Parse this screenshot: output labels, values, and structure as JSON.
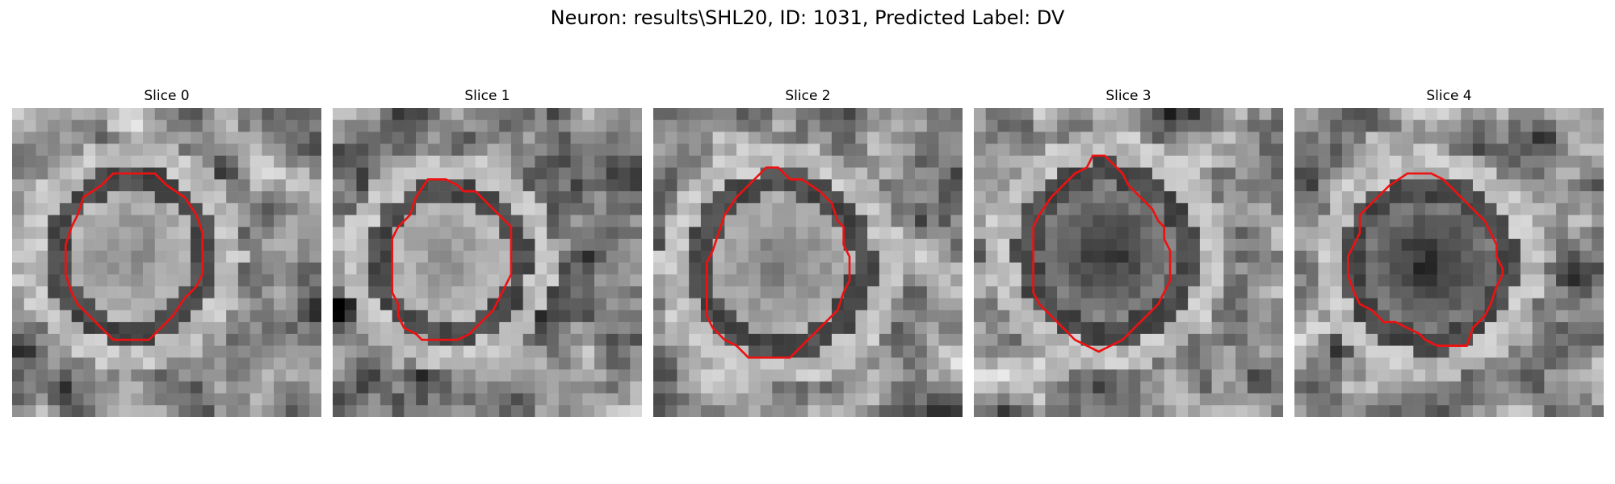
{
  "figure": {
    "title": "Neuron: results\\SHL20, ID: 1031, Predicted Label: DV",
    "contour_color": "#ee1111",
    "image_colormap": "gray",
    "panels": [
      {
        "title": "Slice 0",
        "blob_brightness": 0.55,
        "contour": [
          [
            10.5,
            5.5
          ],
          [
            12.0,
            5.5
          ],
          [
            13.0,
            6.5
          ],
          [
            14.5,
            7.5
          ],
          [
            15.5,
            9.0
          ],
          [
            16.0,
            10.5
          ],
          [
            16.0,
            14.0
          ],
          [
            15.5,
            15.0
          ],
          [
            14.5,
            16.0
          ],
          [
            13.5,
            17.5
          ],
          [
            12.5,
            18.5
          ],
          [
            11.5,
            19.5
          ],
          [
            8.5,
            19.5
          ],
          [
            7.5,
            18.5
          ],
          [
            6.5,
            17.5
          ],
          [
            5.5,
            16.5
          ],
          [
            5.0,
            15.5
          ],
          [
            4.5,
            14.0
          ],
          [
            4.5,
            11.5
          ],
          [
            5.0,
            10.0
          ],
          [
            5.5,
            9.0
          ],
          [
            6.0,
            7.5
          ],
          [
            7.5,
            6.5
          ],
          [
            8.5,
            5.5
          ]
        ]
      },
      {
        "title": "Slice 1",
        "blob_brightness": 0.58,
        "contour": [
          [
            8.0,
            6.0
          ],
          [
            9.5,
            6.0
          ],
          [
            10.5,
            6.5
          ],
          [
            11.0,
            7.0
          ],
          [
            12.0,
            7.0
          ],
          [
            13.0,
            8.0
          ],
          [
            14.0,
            9.0
          ],
          [
            15.0,
            10.0
          ],
          [
            15.0,
            14.0
          ],
          [
            14.5,
            15.0
          ],
          [
            14.0,
            16.0
          ],
          [
            13.5,
            17.0
          ],
          [
            12.5,
            18.0
          ],
          [
            11.5,
            19.0
          ],
          [
            10.5,
            19.5
          ],
          [
            7.5,
            19.5
          ],
          [
            7.0,
            19.0
          ],
          [
            6.0,
            18.5
          ],
          [
            5.5,
            17.5
          ],
          [
            5.5,
            16.5
          ],
          [
            5.0,
            15.5
          ],
          [
            5.0,
            11.0
          ],
          [
            5.5,
            10.0
          ],
          [
            6.5,
            9.0
          ],
          [
            7.0,
            7.5
          ]
        ]
      },
      {
        "title": "Slice 2",
        "blob_brightness": 0.5,
        "contour": [
          [
            9.5,
            5.0
          ],
          [
            10.5,
            5.0
          ],
          [
            11.5,
            6.0
          ],
          [
            12.5,
            6.0
          ],
          [
            14.0,
            7.0
          ],
          [
            15.0,
            8.0
          ],
          [
            15.5,
            9.5
          ],
          [
            16.0,
            10.0
          ],
          [
            16.0,
            11.5
          ],
          [
            16.5,
            12.5
          ],
          [
            16.5,
            14.5
          ],
          [
            16.0,
            15.5
          ],
          [
            15.5,
            17.0
          ],
          [
            14.5,
            18.0
          ],
          [
            13.5,
            19.0
          ],
          [
            12.5,
            20.0
          ],
          [
            11.5,
            21.0
          ],
          [
            8.0,
            21.0
          ],
          [
            7.5,
            20.5
          ],
          [
            7.0,
            20.0
          ],
          [
            6.0,
            19.5
          ],
          [
            5.0,
            18.5
          ],
          [
            4.5,
            17.5
          ],
          [
            4.5,
            13.0
          ],
          [
            5.0,
            12.0
          ],
          [
            5.5,
            10.5
          ],
          [
            6.0,
            9.0
          ],
          [
            7.0,
            7.5
          ],
          [
            8.0,
            6.5
          ]
        ]
      },
      {
        "title": "Slice 3",
        "blob_brightness": 0.18,
        "contour": [
          [
            10.0,
            4.0
          ],
          [
            11.0,
            4.0
          ],
          [
            11.5,
            4.5
          ],
          [
            12.5,
            5.5
          ],
          [
            13.0,
            6.5
          ],
          [
            14.0,
            7.5
          ],
          [
            15.0,
            8.5
          ],
          [
            15.5,
            9.5
          ],
          [
            16.0,
            10.0
          ],
          [
            16.0,
            11.0
          ],
          [
            16.5,
            12.0
          ],
          [
            16.5,
            14.5
          ],
          [
            16.0,
            15.5
          ],
          [
            15.5,
            16.5
          ],
          [
            14.5,
            17.5
          ],
          [
            13.5,
            18.5
          ],
          [
            12.5,
            19.5
          ],
          [
            11.5,
            20.0
          ],
          [
            10.5,
            20.5
          ],
          [
            9.5,
            20.0
          ],
          [
            8.5,
            19.5
          ],
          [
            7.5,
            18.5
          ],
          [
            6.5,
            17.5
          ],
          [
            5.5,
            16.5
          ],
          [
            5.0,
            15.5
          ],
          [
            5.0,
            10.0
          ],
          [
            5.5,
            9.0
          ],
          [
            6.5,
            7.5
          ],
          [
            7.5,
            6.5
          ],
          [
            8.5,
            5.5
          ],
          [
            9.5,
            5.0
          ]
        ]
      },
      {
        "title": "Slice 4",
        "blob_brightness": 0.15,
        "contour": [
          [
            9.5,
            5.5
          ],
          [
            11.5,
            5.5
          ],
          [
            12.5,
            6.0
          ],
          [
            13.5,
            7.0
          ],
          [
            14.5,
            8.0
          ],
          [
            15.0,
            8.5
          ],
          [
            16.0,
            9.5
          ],
          [
            16.5,
            10.5
          ],
          [
            17.0,
            11.5
          ],
          [
            17.0,
            12.5
          ],
          [
            17.5,
            13.5
          ],
          [
            17.5,
            14.0
          ],
          [
            17.0,
            15.0
          ],
          [
            16.5,
            16.5
          ],
          [
            16.0,
            17.5
          ],
          [
            15.0,
            18.5
          ],
          [
            14.5,
            20.0
          ],
          [
            12.0,
            20.0
          ],
          [
            11.0,
            19.5
          ],
          [
            10.5,
            19.0
          ],
          [
            9.5,
            18.5
          ],
          [
            8.5,
            18.0
          ],
          [
            7.5,
            18.0
          ],
          [
            6.5,
            17.0
          ],
          [
            5.5,
            16.5
          ],
          [
            5.0,
            15.5
          ],
          [
            4.5,
            14.0
          ],
          [
            4.5,
            12.5
          ],
          [
            5.0,
            11.5
          ],
          [
            5.5,
            10.5
          ],
          [
            5.5,
            9.0
          ],
          [
            6.5,
            8.0
          ],
          [
            8.0,
            6.5
          ]
        ]
      }
    ]
  }
}
